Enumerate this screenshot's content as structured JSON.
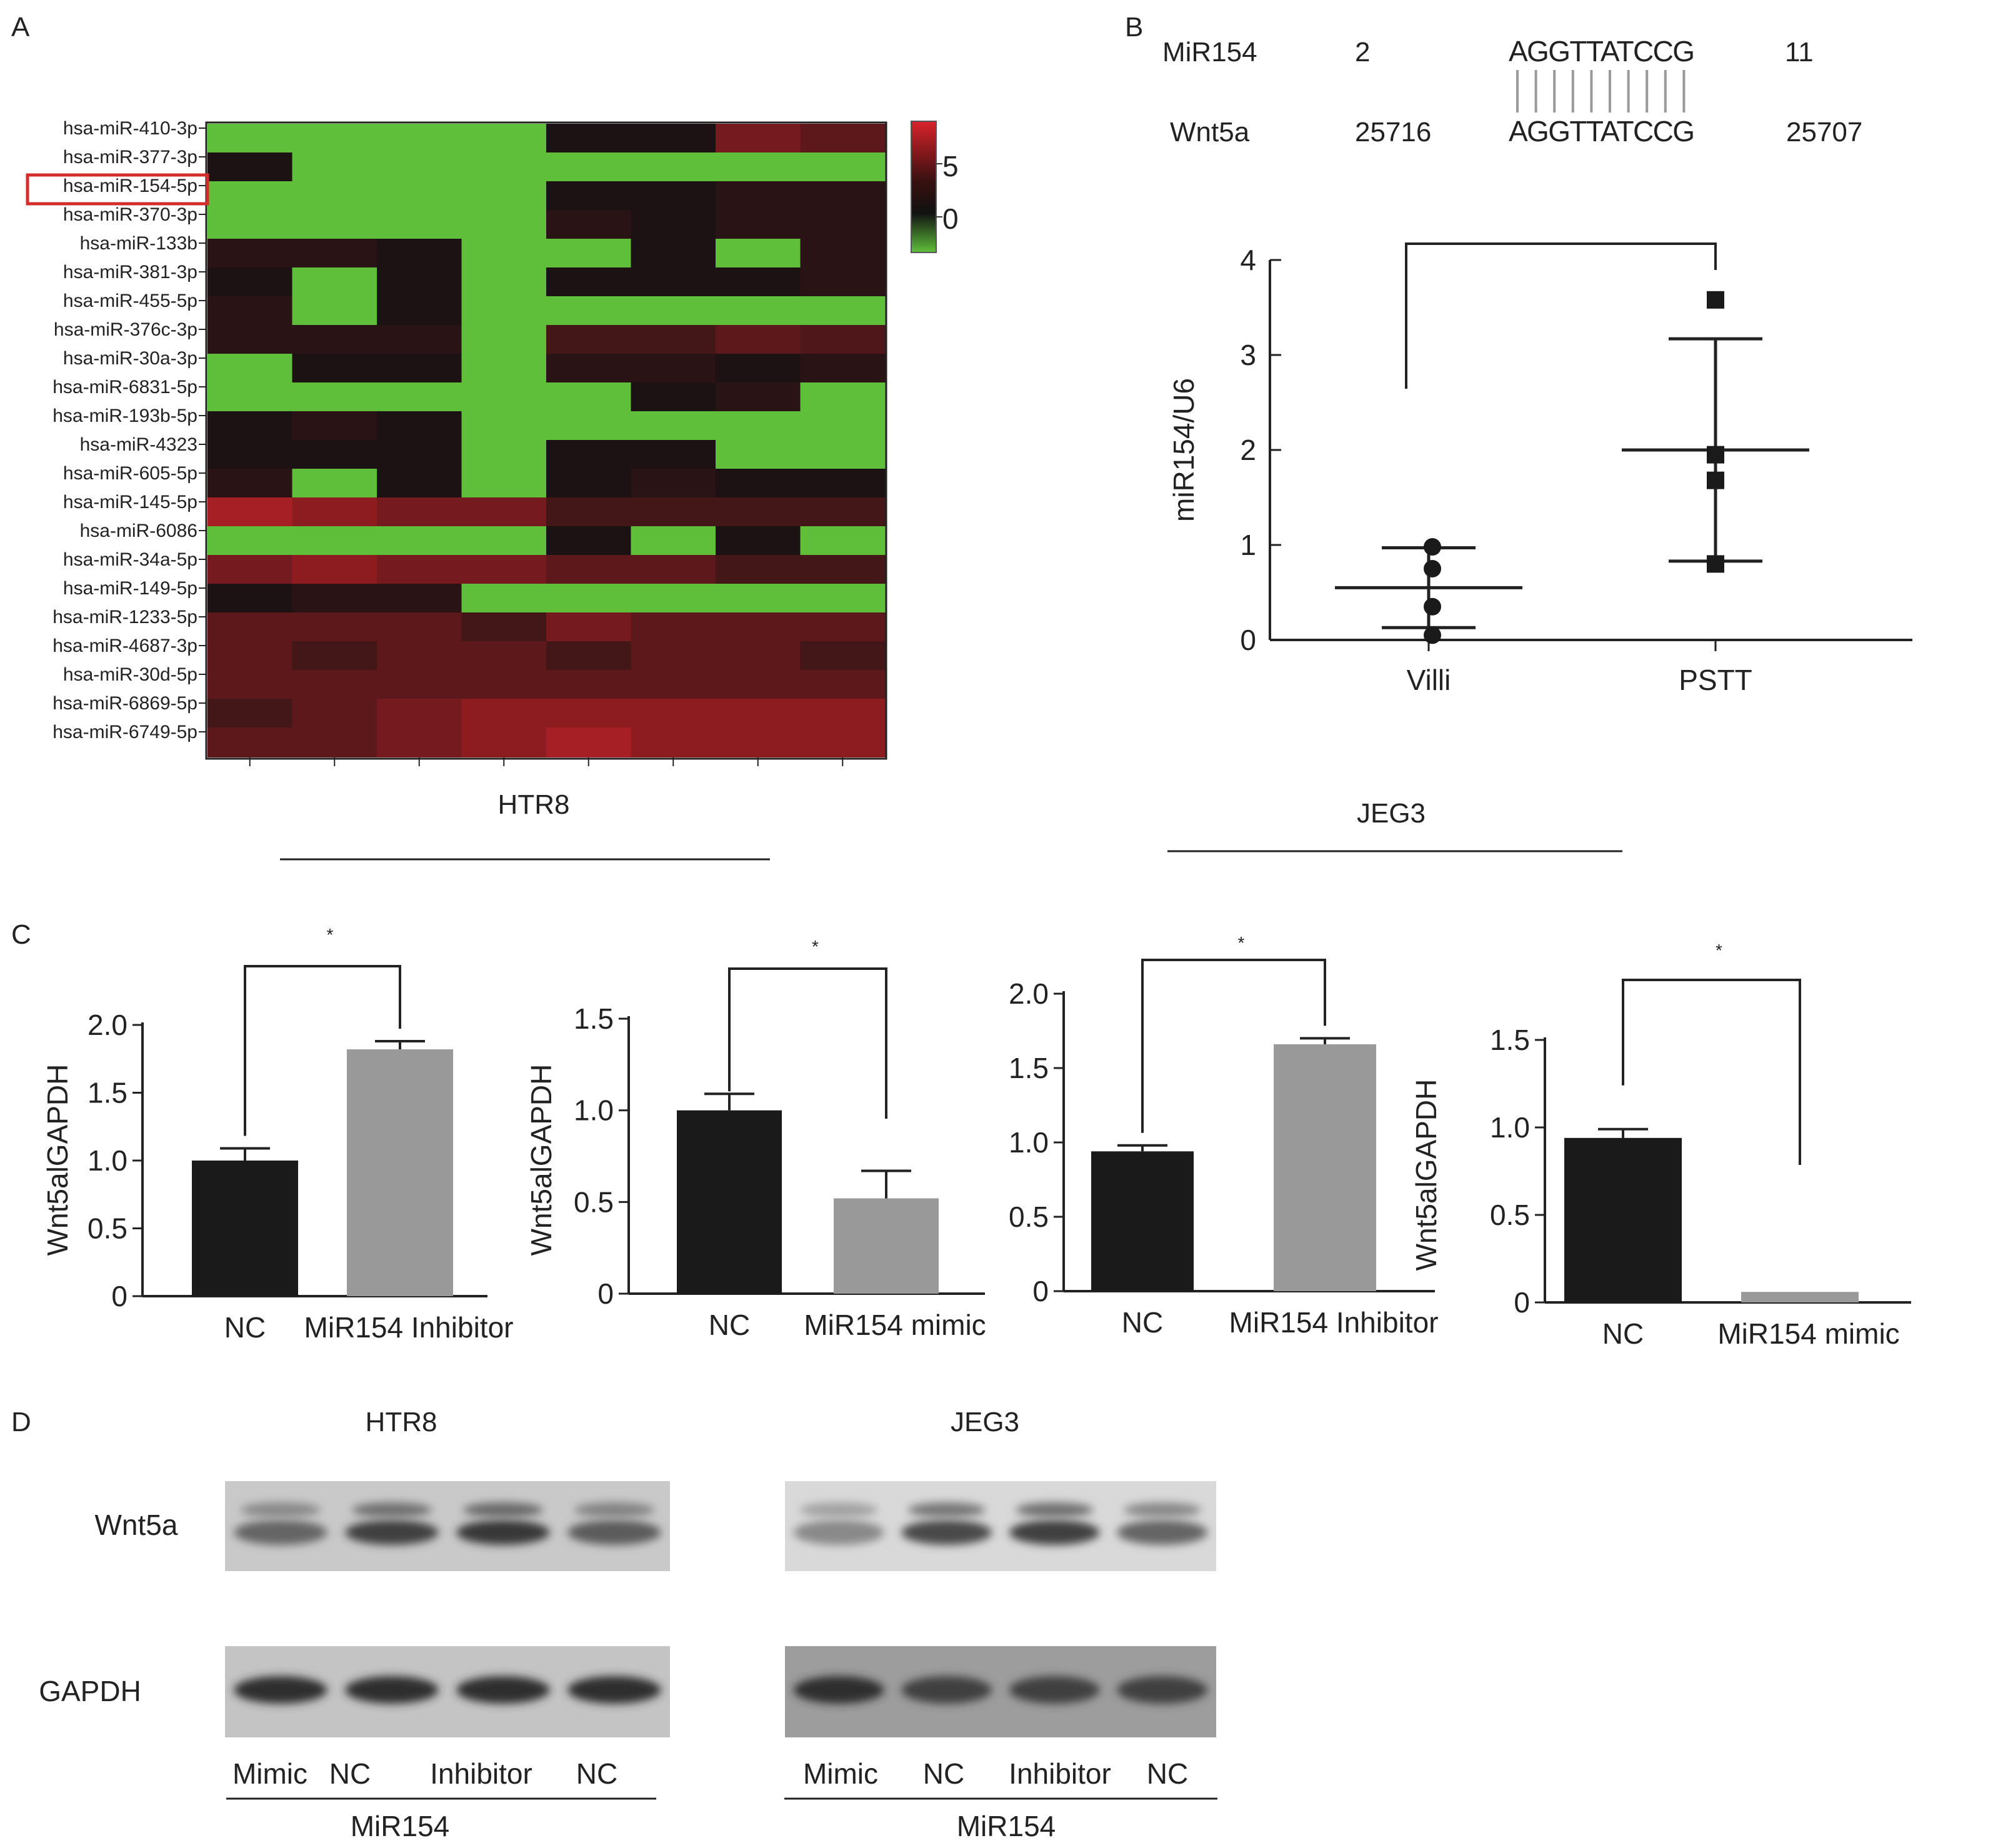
{
  "panels": {
    "A": "A",
    "B": "B",
    "C": "C",
    "D": "D"
  },
  "chart_data": [
    {
      "panel": "A",
      "type": "heatmap",
      "rows": [
        "hsa-miR-410-3p",
        "hsa-miR-377-3p",
        "hsa-miR-154-5p",
        "hsa-miR-370-3p",
        "hsa-miR-133b",
        "hsa-miR-381-3p",
        "hsa-miR-455-5p",
        "hsa-miR-376c-3p",
        "hsa-miR-30a-3p",
        "hsa-miR-6831-5p",
        "hsa-miR-193b-5p",
        "hsa-miR-4323",
        "hsa-miR-605-5p",
        "hsa-miR-145-5p",
        "hsa-miR-6086",
        "hsa-miR-34a-5p",
        "hsa-miR-149-5p",
        "hsa-miR-1233-5p",
        "hsa-miR-4687-3p",
        "hsa-miR-30d-5p",
        "hsa-miR-6869-5p",
        "hsa-miR-6749-5p"
      ],
      "columns": 8,
      "highlighted_row": "hsa-miR-154-5p",
      "colorbar_ticks": [
        "5",
        "0"
      ],
      "colorbar_range": [
        -2,
        8
      ],
      "colors": {
        "high": "#d8232a",
        "mid": "#111111",
        "low": "#5fbf3a"
      },
      "values": [
        [
          -2,
          -2,
          -2,
          -2,
          0.5,
          0.5,
          4,
          3
        ],
        [
          0.5,
          -2,
          -2,
          -2,
          -2,
          -2,
          -2,
          -2
        ],
        [
          -2,
          -2,
          -2,
          -2,
          0.5,
          0.5,
          1,
          1
        ],
        [
          -2,
          -2,
          -2,
          -2,
          1,
          0.5,
          1,
          1
        ],
        [
          1,
          1,
          0.5,
          -2,
          -2,
          0.5,
          -2,
          1
        ],
        [
          0.5,
          -2,
          0.5,
          -2,
          0.5,
          0.5,
          0.5,
          1
        ],
        [
          1,
          -2,
          0.5,
          -2,
          -2,
          -2,
          -2,
          -2
        ],
        [
          1,
          1,
          1,
          -2,
          2,
          2,
          3,
          2.5
        ],
        [
          -2,
          0.5,
          0.5,
          -2,
          1,
          1,
          0.5,
          1
        ],
        [
          -2,
          -2,
          -2,
          -2,
          -2,
          0.5,
          1,
          -2
        ],
        [
          0.5,
          1,
          0.5,
          -2,
          -2,
          -2,
          -2,
          -2
        ],
        [
          0.5,
          0.5,
          0.5,
          -2,
          0.5,
          0.5,
          -2,
          -2
        ],
        [
          1,
          -2,
          0.5,
          -2,
          0.5,
          1,
          0.5,
          0.5
        ],
        [
          6,
          5,
          4,
          4,
          2,
          2,
          2,
          2
        ],
        [
          -2,
          -2,
          -2,
          -2,
          0.5,
          -2,
          0.5,
          -2
        ],
        [
          4,
          5,
          4,
          4,
          3,
          3,
          2,
          2
        ],
        [
          0.5,
          1,
          1,
          -2,
          -2,
          -2,
          -2,
          -2
        ],
        [
          3,
          3,
          3,
          2,
          4,
          3,
          3,
          3
        ],
        [
          3,
          2,
          3,
          3,
          2,
          3,
          3,
          2
        ],
        [
          3,
          3,
          3,
          3,
          3,
          3,
          3,
          3
        ],
        [
          2,
          3,
          4,
          5,
          5,
          5,
          5,
          5
        ],
        [
          3,
          3,
          4,
          5,
          6,
          5,
          5,
          5
        ]
      ],
      "group_label": "HTR8"
    },
    {
      "panel": "B",
      "type": "scatter",
      "ylabel": "miR154/U6",
      "categories": [
        "Villi",
        "PSTT"
      ],
      "ylim": [
        0,
        4
      ],
      "yticks": [
        "0",
        "1",
        "2",
        "3",
        "4"
      ],
      "points": [
        [
          0.05,
          0.35,
          0.75,
          0.98
        ],
        [
          0.8,
          1.68,
          1.95,
          3.58
        ]
      ],
      "mean": [
        0.55,
        2.0
      ],
      "sd": [
        0.42,
        1.17
      ]
    },
    {
      "panel": "C1",
      "type": "bar",
      "ylabel": "Wnt5alGAPDH",
      "categories": [
        "NC",
        "MiR154 Inhibitor"
      ],
      "values": [
        1.0,
        1.82
      ],
      "errors": [
        0.09,
        0.06
      ],
      "ylim": [
        0,
        2.0
      ],
      "yticks": [
        "0",
        "0.5",
        "1.0",
        "1.5",
        "2.0"
      ],
      "significance": "*",
      "colors": [
        "#1a1a1a",
        "#999999"
      ]
    },
    {
      "panel": "C2",
      "type": "bar",
      "ylabel": "Wnt5alGAPDH",
      "categories": [
        "NC",
        "MiR154 mimic"
      ],
      "values": [
        1.0,
        0.52
      ],
      "errors": [
        0.09,
        0.15
      ],
      "ylim": [
        0,
        1.5
      ],
      "yticks": [
        "0",
        "0.5",
        "1.0",
        "1.5"
      ],
      "significance": "*",
      "colors": [
        "#1a1a1a",
        "#999999"
      ]
    },
    {
      "panel": "C3",
      "type": "bar",
      "ylabel": "",
      "categories": [
        "NC",
        "MiR154 Inhibitor"
      ],
      "values": [
        0.94,
        1.66
      ],
      "errors": [
        0.04,
        0.04
      ],
      "ylim": [
        0,
        2.0
      ],
      "yticks": [
        "0",
        "0.5",
        "1.0",
        "1.5",
        "2.0"
      ],
      "significance": "*",
      "colors": [
        "#1a1a1a",
        "#999999"
      ]
    },
    {
      "panel": "C4",
      "type": "bar",
      "ylabel": "Wnt5alGAPDH",
      "categories": [
        "NC",
        "MiR154 mimic"
      ],
      "values": [
        0.94,
        0.06
      ],
      "errors": [
        0.05,
        0.0
      ],
      "ylim": [
        0,
        1.5
      ],
      "yticks": [
        "0",
        "0.5",
        "1.0",
        "1.5"
      ],
      "significance": "*",
      "colors": [
        "#1a1a1a",
        "#999999"
      ]
    }
  ],
  "alignment": {
    "mir_name": "MiR154",
    "mir_start": "2",
    "mir_seq": "AGGTTATCCG",
    "mir_end": "11",
    "target_name": "Wnt5a",
    "target_start": "25716",
    "target_seq": "AGGTTATCCG",
    "target_end": "25707"
  },
  "panel_c_groups": {
    "htr8": "HTR8",
    "jeg3": "JEG3"
  },
  "western": {
    "groups": [
      "HTR8",
      "JEG3"
    ],
    "rows": [
      "Wnt5a",
      "GAPDH"
    ],
    "lanes": [
      "Mimic",
      "NC",
      "Inhibitor",
      "NC"
    ],
    "lane_group": "MiR154",
    "band_intensity": {
      "HTR8": {
        "Wnt5a": [
          0.55,
          0.75,
          0.8,
          0.6
        ],
        "GAPDH": [
          0.85,
          0.85,
          0.85,
          0.85
        ]
      },
      "JEG3": {
        "Wnt5a": [
          0.35,
          0.7,
          0.75,
          0.55
        ],
        "GAPDH": [
          0.85,
          0.75,
          0.75,
          0.75
        ]
      }
    }
  }
}
